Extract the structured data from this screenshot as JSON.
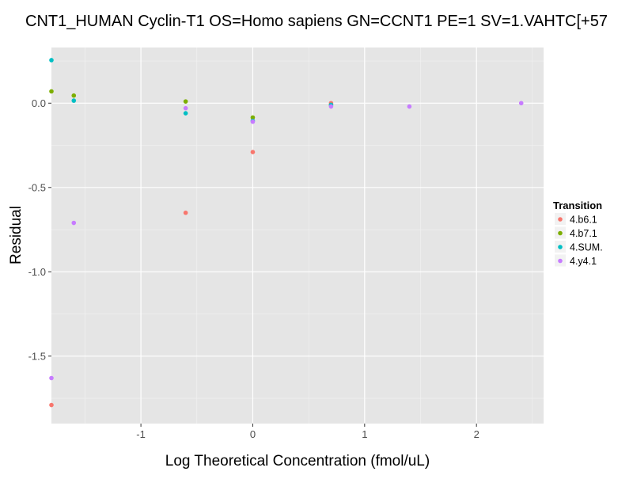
{
  "chart_data": {
    "type": "scatter",
    "title": "CNT1_HUMAN Cyclin-T1 OS=Homo sapiens GN=CCNT1 PE=1 SV=1.VAHTC[+57",
    "xlabel": "Log Theoretical Concentration (fmol/uL)",
    "ylabel": "Residual",
    "xlim": [
      -1.8,
      2.6
    ],
    "ylim": [
      -1.9,
      0.33
    ],
    "x_ticks": [
      -1,
      0,
      1,
      2
    ],
    "x_tick_labels": [
      "-1",
      "0",
      "1",
      "2"
    ],
    "y_ticks": [
      0.0,
      -0.5,
      -1.0,
      -1.5
    ],
    "y_tick_labels": [
      "0.0",
      "-0.5",
      "-1.0",
      "-1.5"
    ],
    "grid": true,
    "legend": {
      "title": "Transition",
      "placement": "right"
    },
    "series": [
      {
        "name": "4.b6.1",
        "color": "#F8766D",
        "points": [
          [
            -1.8,
            -1.79
          ],
          [
            -0.6,
            -0.65
          ],
          [
            0.0,
            -0.29
          ],
          [
            0.7,
            0.0
          ]
        ]
      },
      {
        "name": "4.b7.1",
        "color": "#7CAE00",
        "points": [
          [
            -1.8,
            0.07
          ],
          [
            -1.6,
            0.045
          ],
          [
            -0.6,
            0.01
          ],
          [
            0.0,
            -0.085
          ],
          [
            0.7,
            -0.01
          ]
        ]
      },
      {
        "name": "4.SUM.",
        "color": "#00BFC4",
        "points": [
          [
            -1.8,
            0.255
          ],
          [
            -1.6,
            0.015
          ],
          [
            -0.6,
            -0.06
          ],
          [
            0.0,
            -0.105
          ],
          [
            0.7,
            -0.01
          ]
        ]
      },
      {
        "name": "4.y4.1",
        "color": "#C77CFF",
        "points": [
          [
            -1.8,
            -1.63
          ],
          [
            -1.6,
            -0.71
          ],
          [
            -0.6,
            -0.03
          ],
          [
            0.0,
            -0.11
          ],
          [
            0.7,
            -0.02
          ],
          [
            1.4,
            -0.02
          ],
          [
            2.4,
            0.0
          ]
        ]
      }
    ]
  }
}
